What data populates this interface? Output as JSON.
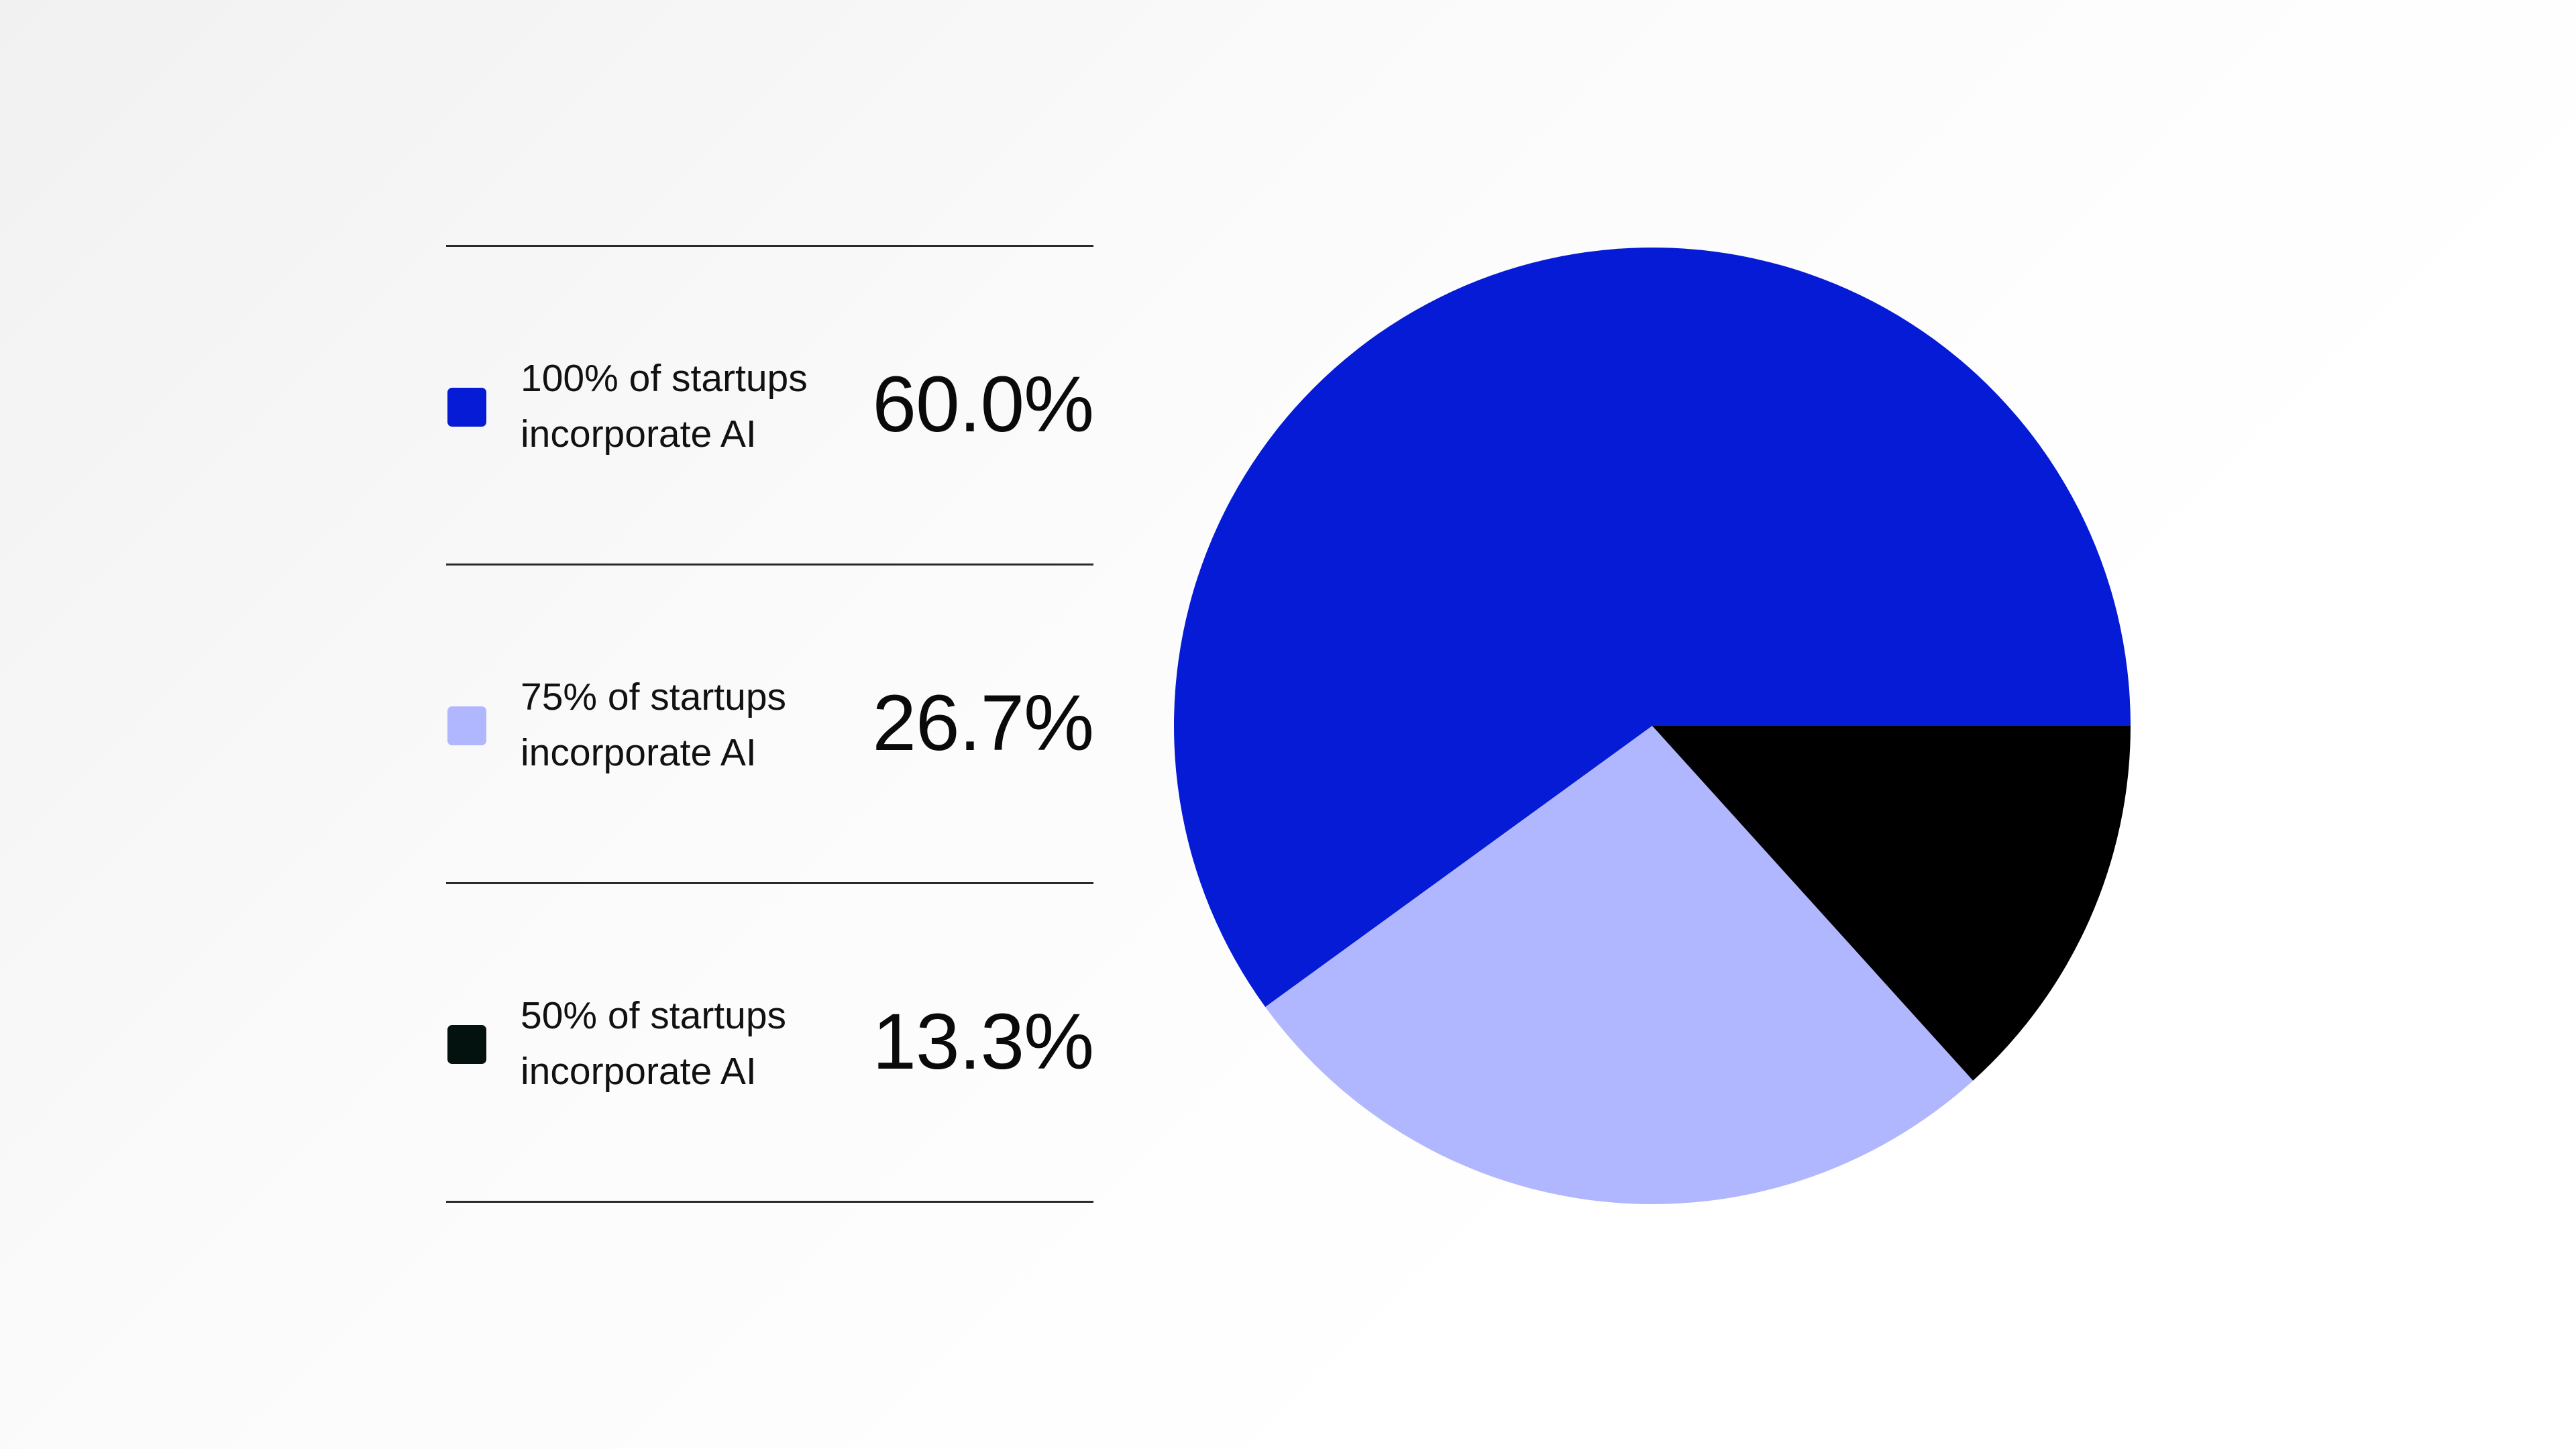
{
  "chart_data": {
    "type": "pie",
    "categories": [
      "100% of startups incorporate AI",
      "75% of startups incorporate AI",
      "50% of startups incorporate AI"
    ],
    "values": [
      60.0,
      26.7,
      13.3
    ],
    "value_labels": [
      "60.0%",
      "26.7%",
      "13.3%"
    ],
    "colors": [
      "#051bd6",
      "#b0b7ff",
      "#000000"
    ],
    "swatch_colors": [
      "#051bd6",
      "#b0b7ff",
      "#03120f"
    ],
    "legend_placement": "left",
    "start_angle_deg": 0,
    "direction": "counterclockwise"
  },
  "legend": {
    "items": [
      {
        "label": "100% of startups incorporate AI",
        "value": "60.0%"
      },
      {
        "label": "75% of startups incorporate AI",
        "value": "26.7%"
      },
      {
        "label": "50% of startups incorporate AI",
        "value": "13.3%"
      }
    ]
  }
}
